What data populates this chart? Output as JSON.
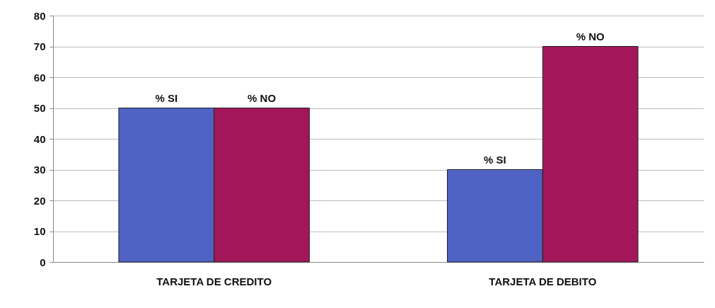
{
  "chart_data": {
    "type": "bar",
    "categories": [
      "TARJETA DE CREDITO",
      "TARJETA DE DEBITO"
    ],
    "series": [
      {
        "name": "% SI",
        "color": "#4f63c4",
        "values": [
          50,
          30
        ]
      },
      {
        "name": "% NO",
        "color": "#a3175a",
        "values": [
          50,
          70
        ]
      }
    ],
    "ylim": [
      0,
      80
    ],
    "yticks": [
      0,
      10,
      20,
      30,
      40,
      50,
      60,
      70,
      80
    ],
    "grid": "y",
    "legend": false
  }
}
